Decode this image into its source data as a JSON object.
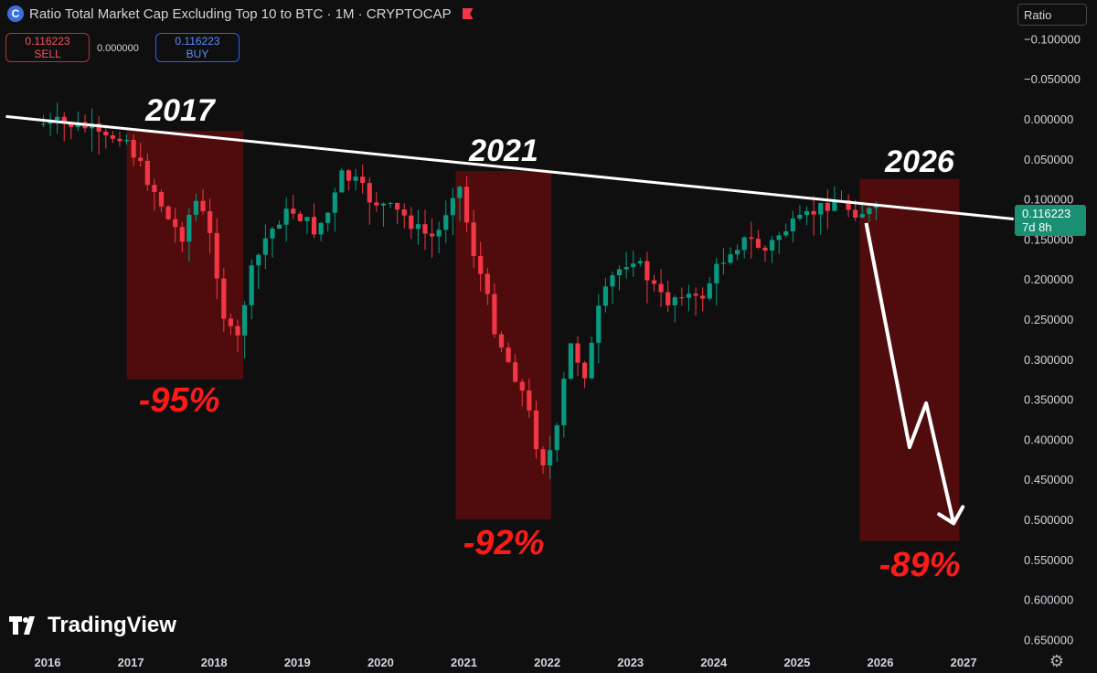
{
  "header": {
    "title": "Ratio Total Market Cap Excluding Top 10 to BTC · 1M · CRYPTOCAP",
    "sell_price": "0.116223",
    "sell_label": "SELL",
    "spread": "0.000000",
    "buy_price": "0.116223",
    "buy_label": "BUY",
    "scale_button": "Ratio"
  },
  "price_tag": {
    "value": "0.116223",
    "countdown": "7d 8h"
  },
  "brand": "TradingView",
  "colors": {
    "up": "#089981",
    "down": "#f23645",
    "zone": "#5c0c0c",
    "annotation_red": "#ff1a1a",
    "background": "#0f0f0f"
  },
  "chart_data": {
    "type": "candlestick",
    "y_axis": {
      "ticks": [
        "−0.100000",
        "−0.050000",
        "0.000000",
        "0.050000",
        "0.100000",
        "0.150000",
        "0.200000",
        "0.250000",
        "0.300000",
        "0.350000",
        "0.400000",
        "0.450000",
        "0.500000",
        "0.550000",
        "0.600000",
        "0.650000"
      ],
      "inverted": true,
      "range": [
        -0.12,
        0.67
      ]
    },
    "x_axis": {
      "ticks": [
        "2016",
        "2017",
        "2018",
        "2019",
        "2020",
        "2021",
        "2022",
        "2023",
        "2024",
        "2025",
        "2026",
        "2027"
      ],
      "range": [
        2015.5,
        2027.6
      ]
    },
    "trendline": {
      "from": [
        2015.5,
        -0.003
      ],
      "to": [
        2027.6,
        0.125
      ]
    },
    "zones": [
      {
        "label": "2017",
        "drop": "-95%",
        "x0": 2016.95,
        "x1": 2018.35,
        "y0": 0.015,
        "y1": 0.325
      },
      {
        "label": "2021",
        "drop": "-92%",
        "x0": 2020.9,
        "x1": 2022.05,
        "y0": 0.065,
        "y1": 0.5
      },
      {
        "label": "2026",
        "drop": "-89%",
        "x0": 2025.75,
        "x1": 2026.95,
        "y0": 0.075,
        "y1": 0.527
      }
    ],
    "projection": [
      [
        2025.83,
        0.13
      ],
      [
        2026.35,
        0.41
      ],
      [
        2026.55,
        0.355
      ],
      [
        2026.88,
        0.505
      ]
    ],
    "series": [
      [
        2015.95,
        0.007
      ],
      [
        2016.2,
        0.005
      ],
      [
        2016.4,
        0.008
      ],
      [
        2016.6,
        0.012
      ],
      [
        2016.75,
        0.028
      ],
      [
        2016.9,
        0.02
      ],
      [
        2017.0,
        0.018
      ],
      [
        2017.1,
        0.04
      ],
      [
        2017.25,
        0.07
      ],
      [
        2017.4,
        0.095
      ],
      [
        2017.55,
        0.13
      ],
      [
        2017.7,
        0.145
      ],
      [
        2017.85,
        0.1
      ],
      [
        2018.0,
        0.13
      ],
      [
        2018.1,
        0.18
      ],
      [
        2018.2,
        0.245
      ],
      [
        2018.35,
        0.285
      ],
      [
        2018.5,
        0.2
      ],
      [
        2018.7,
        0.15
      ],
      [
        2018.9,
        0.12
      ],
      [
        2019.05,
        0.115
      ],
      [
        2019.3,
        0.14
      ],
      [
        2019.5,
        0.11
      ],
      [
        2019.6,
        0.07
      ],
      [
        2019.8,
        0.08
      ],
      [
        2019.95,
        0.1
      ],
      [
        2020.15,
        0.11
      ],
      [
        2020.35,
        0.12
      ],
      [
        2020.55,
        0.14
      ],
      [
        2020.75,
        0.15
      ],
      [
        2020.85,
        0.12
      ],
      [
        2020.95,
        0.09
      ],
      [
        2021.05,
        0.085
      ],
      [
        2021.15,
        0.15
      ],
      [
        2021.3,
        0.2
      ],
      [
        2021.45,
        0.26
      ],
      [
        2021.6,
        0.3
      ],
      [
        2021.75,
        0.33
      ],
      [
        2021.9,
        0.38
      ],
      [
        2022.0,
        0.43
      ],
      [
        2022.1,
        0.42
      ],
      [
        2022.2,
        0.39
      ],
      [
        2022.35,
        0.28
      ],
      [
        2022.55,
        0.32
      ],
      [
        2022.7,
        0.24
      ],
      [
        2022.85,
        0.2
      ],
      [
        2023.1,
        0.17
      ],
      [
        2023.3,
        0.2
      ],
      [
        2023.5,
        0.23
      ],
      [
        2023.7,
        0.215
      ],
      [
        2023.9,
        0.23
      ],
      [
        2024.1,
        0.19
      ],
      [
        2024.3,
        0.16
      ],
      [
        2024.5,
        0.15
      ],
      [
        2024.7,
        0.165
      ],
      [
        2024.9,
        0.14
      ],
      [
        2025.1,
        0.13
      ],
      [
        2025.3,
        0.115
      ],
      [
        2025.55,
        0.1
      ],
      [
        2025.75,
        0.115
      ],
      [
        2025.95,
        0.116
      ]
    ]
  }
}
